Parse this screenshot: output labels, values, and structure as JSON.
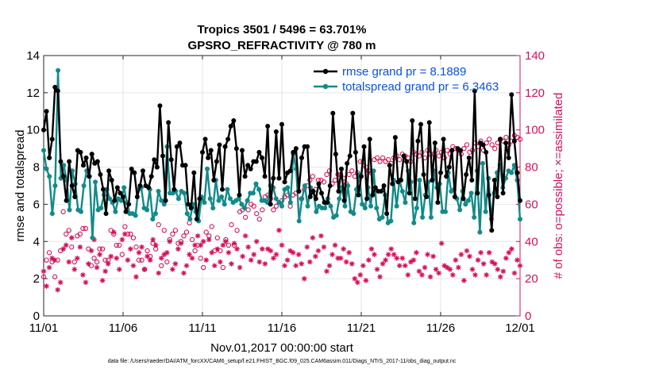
{
  "chart_data": {
    "type": "line",
    "title": "Tropics 3501 / 5496 = 63.701%",
    "subtitle": "GPSRO_REFRACTIVITY @ 780 m",
    "xlabel": "Nov.01,2017 00:00:00 start",
    "ylabel": "rmse and totalspread",
    "y2label": "# of obs: o=possible; ×=assimilated",
    "footer": "data file: /Users/raeder/DAI/ATM_forcXX/CAM6_setup/f.e21.FHIST_BGC.f09_025.CAM6assim.011/Diags_NTrS_2017-11/obs_diag_output.nc",
    "xlim": [
      0,
      30
    ],
    "ylim": [
      0,
      14
    ],
    "y2lim": [
      0,
      140
    ],
    "x_ticks": [
      0,
      5,
      10,
      15,
      20,
      25,
      30
    ],
    "x_tick_labels": [
      "11/01",
      "11/06",
      "11/11",
      "11/16",
      "11/21",
      "11/26",
      "12/01"
    ],
    "y_ticks": [
      0,
      2,
      4,
      6,
      8,
      10,
      12,
      14
    ],
    "y_tick_labels": [
      "0",
      "2",
      "4",
      "6",
      "8",
      "10",
      "12",
      "14"
    ],
    "y2_ticks": [
      0,
      20,
      40,
      60,
      80,
      100,
      120,
      140
    ],
    "y2_tick_labels": [
      "0",
      "20",
      "40",
      "60",
      "80",
      "100",
      "120",
      "140"
    ],
    "grid": true,
    "legend_position": "top-right",
    "colors": {
      "rmse": "#000000",
      "totalspread": "#128a8a",
      "obs": "#d6105a",
      "legend_text": "#0a50e6",
      "grid": "#e6e6e6"
    },
    "series": [
      {
        "name": "rmse grand pr = 8.1889",
        "axis": "left",
        "values": [
          10.0,
          11.0,
          8.5,
          9.5,
          12.3,
          12.1,
          8.3,
          7.5,
          6.2,
          8.3,
          7.0,
          6.4,
          8.9,
          8.8,
          8.1,
          8.5,
          7.5,
          8.7,
          8.2,
          8.3,
          7.6,
          6.8,
          5.5,
          7.8,
          7.3,
          6.2,
          6.9,
          6.6,
          6.4,
          5.6,
          6.0,
          7.9,
          7.7,
          6.4,
          7.0,
          7.8,
          7.0,
          6.9,
          7.5,
          8.4,
          8.0,
          11.3,
          8.6,
          6.2,
          10.4,
          8.4,
          6.8,
          9.1,
          9.3,
          8.1,
          8.1,
          6.0,
          5.8,
          7.7,
          5.2,
          6.3,
          8.8,
          9.5,
          8.5,
          8.9,
          7.3,
          8.3,
          9.2,
          6.8,
          9.1,
          9.5,
          10.2,
          10.5,
          9.0,
          6.5,
          8.9,
          7.5,
          8.1,
          7.9,
          8.3,
          8.3,
          8.8,
          8.5,
          7.5,
          10.2,
          6.0,
          7.4,
          9.9,
          7.4,
          10.3,
          7.2,
          7.7,
          7.8,
          8.8,
          9.0,
          6.7,
          8.5,
          9.1,
          9.1,
          6.4,
          6.7,
          6.3,
          7.1,
          6.6,
          6.1,
          6.1,
          7.0,
          10.9,
          8.7,
          6.7,
          7.9,
          6.2,
          8.2,
          8.6,
          10.9,
          8.8,
          6.5,
          7.5,
          9.1,
          6.3,
          9.5,
          6.5,
          6.9,
          6.7,
          6.7,
          7.0,
          5.5,
          8.1,
          7.1,
          9.6,
          7.2,
          7.3,
          8.6,
          8.3,
          6.6,
          10.5,
          6.3,
          9.4,
          10.3,
          7.6,
          6.4,
          10.4,
          7.3,
          9.3,
          6.1,
          7.7,
          9.5,
          7.5,
          8.0,
          8.9,
          6.4,
          9.0,
          8.9,
          6.3,
          7.6,
          8.5,
          7.3,
          12.1,
          6.6,
          9.3,
          9.2,
          8.8,
          6.5,
          4.6,
          7.3,
          6.4,
          9.5,
          6.6,
          9.3,
          8.5,
          11.9,
          9.4,
          7.7,
          6.2
        ]
      },
      {
        "name": "totalspread grand pr = 6.3463",
        "axis": "left",
        "values": [
          8.9,
          7.9,
          7.5,
          5.5,
          7.0,
          13.2,
          7.4,
          8.1,
          7.3,
          5.7,
          7.8,
          7.1,
          5.7,
          5.6,
          7.0,
          7.8,
          7.5,
          4.2,
          7.2,
          5.7,
          5.8,
          6.5,
          6.8,
          6.3,
          6.1,
          5.6,
          6.3,
          6.2,
          6.9,
          6.1,
          5.5,
          5.5,
          5.4,
          6.8,
          6.9,
          5.8,
          5.7,
          6.8,
          5.2,
          5.5,
          6.7,
          6.2,
          6.0,
          9.1,
          6.6,
          6.6,
          6.7,
          6.3,
          6.7,
          6.6,
          5.5,
          5.2,
          6.0,
          5.6,
          5.1,
          6.4,
          6.1,
          7.9,
          6.3,
          5.8,
          7.3,
          6.2,
          6.4,
          6.0,
          6.8,
          6.3,
          6.1,
          6.2,
          6.3,
          6.0,
          5.8,
          6.2,
          6.6,
          6.6,
          7.1,
          6.8,
          6.2,
          6.2,
          6.1,
          7.0,
          6.9,
          6.3,
          6.1,
          5.9,
          6.8,
          6.9,
          6.1,
          8.7,
          7.9,
          5.1,
          6.3,
          7.0,
          5.9,
          6.9,
          6.7,
          5.6,
          5.9,
          5.8,
          5.8,
          6.3,
          5.9,
          5.3,
          5.4,
          6.3,
          6.9,
          5.9,
          7.0,
          5.6,
          5.5,
          6.8,
          7.6,
          6.0,
          5.8,
          6.9,
          5.9,
          7.8,
          5.8,
          5.2,
          5.3,
          6.5,
          5.0,
          5.1,
          7.3,
          5.9,
          7.3,
          6.7,
          6.1,
          7.8,
          7.2,
          5.0,
          5.8,
          7.3,
          5.3,
          6.5,
          7.2,
          5.3,
          7.8,
          6.9,
          7.1,
          5.6,
          5.6,
          7.7,
          6.7,
          6.8,
          6.3,
          5.7,
          6.7,
          6.0,
          6.2,
          6.6,
          5.3,
          7.8,
          4.5,
          8.2,
          5.6,
          7.4,
          5.2,
          6.6,
          7.7,
          8.1,
          6.9,
          7.4,
          7.8,
          7.7,
          8.1,
          7.3,
          5.2
        ]
      },
      {
        "name": "possible",
        "axis": "right",
        "marker": "o",
        "values": [
          21,
          30,
          34,
          29,
          21,
          30,
          35,
          56,
          44,
          46,
          37,
          29,
          43,
          44,
          47,
          47,
          36,
          27,
          31,
          29,
          36,
          36,
          30,
          30,
          46,
          44,
          38,
          38,
          33,
          48,
          44,
          44,
          42,
          37,
          30,
          30,
          25,
          35,
          32,
          39,
          36,
          49,
          27,
          46,
          29,
          41,
          44,
          46,
          39,
          40,
          43,
          45,
          50,
          41,
          35,
          38,
          31,
          26,
          45,
          43,
          48,
          35,
          42,
          35,
          26,
          41,
          38,
          49,
          38,
          46,
          56,
          57,
          53,
          57,
          60,
          59,
          55,
          52,
          57,
          64,
          65,
          63,
          57,
          59,
          61,
          62,
          64,
          65,
          59,
          65,
          66,
          67,
          63,
          68,
          70,
          73,
          75,
          68,
          73,
          73,
          72,
          76,
          78,
          71,
          73,
          76,
          76,
          74,
          71,
          76,
          78,
          75,
          77,
          83,
          83,
          80,
          78,
          77,
          84,
          85,
          83,
          85,
          83,
          84,
          82,
          85,
          86,
          84,
          87,
          86,
          85,
          83,
          88,
          87,
          86,
          88,
          85,
          89,
          87,
          87,
          89,
          86,
          88,
          85,
          89,
          87,
          91,
          90,
          89,
          87,
          90,
          92,
          88,
          89,
          93,
          91,
          94,
          89,
          93,
          95,
          92,
          90,
          93,
          95,
          94,
          96,
          92,
          94,
          97,
          96,
          95
        ]
      },
      {
        "name": "assimilated",
        "axis": "right",
        "marker": "*",
        "values": [
          24,
          16,
          26,
          31,
          30,
          14,
          18,
          36,
          38,
          29,
          42,
          25,
          31,
          37,
          22,
          18,
          28,
          35,
          41,
          26,
          33,
          19,
          24,
          28,
          32,
          45,
          31,
          25,
          41,
          44,
          30,
          36,
          27,
          21,
          34,
          37,
          25,
          32,
          30,
          41,
          38,
          23,
          31,
          33,
          34,
          40,
          25,
          28,
          36,
          39,
          23,
          27,
          33,
          31,
          38,
          43,
          38,
          40,
          30,
          41,
          34,
          27,
          36,
          29,
          38,
          40,
          34,
          28,
          39,
          36,
          26,
          32,
          43,
          37,
          30,
          33,
          40,
          29,
          36,
          28,
          36,
          35,
          31,
          33,
          46,
          38,
          27,
          30,
          35,
          34,
          27,
          33,
          28,
          20,
          37,
          29,
          42,
          32,
          35,
          43,
          37,
          24,
          27,
          33,
          38,
          31,
          31,
          36,
          29,
          34,
          28,
          20,
          18,
          22,
          27,
          19,
          30,
          36,
          33,
          25,
          21,
          28,
          30,
          33,
          36,
          33,
          31,
          27,
          31,
          27,
          22,
          29,
          30,
          34,
          24,
          22,
          26,
          33,
          21,
          32,
          25,
          23,
          39,
          27,
          26,
          25,
          22,
          30,
          26,
          33,
          19,
          35,
          32,
          25,
          22,
          30,
          34,
          28,
          22,
          34,
          29,
          28,
          25,
          21,
          24,
          31,
          34,
          36,
          23,
          30,
          27
        ]
      }
    ]
  }
}
